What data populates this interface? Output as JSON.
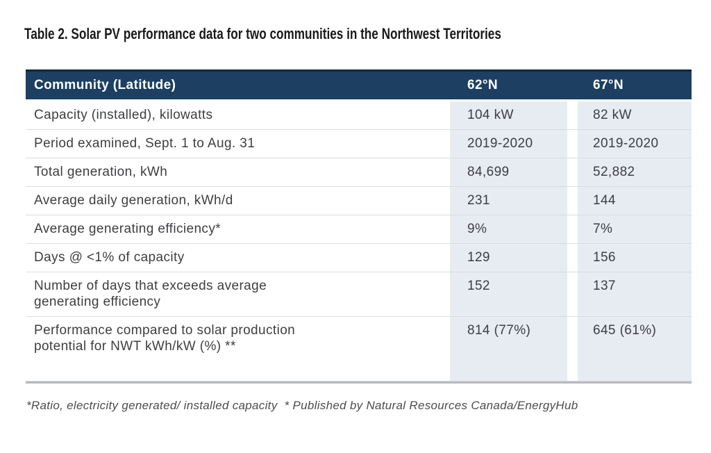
{
  "title": "Table 2. Solar PV performance data for two communities in the Northwest Territories",
  "table": {
    "header": {
      "community": "Community (Latitude)",
      "cols": [
        "62°N",
        "67°N"
      ]
    },
    "rows": [
      {
        "label": "Capacity (installed), kilowatts",
        "v62": "104 kW",
        "v67": "82 kW"
      },
      {
        "label": "Period examined, Sept. 1 to Aug. 31",
        "v62": "2019-2020",
        "v67": "2019-2020"
      },
      {
        "label": "Total generation, kWh",
        "v62": "84,699",
        "v67": "52,882"
      },
      {
        "label": "Average daily generation, kWh/d",
        "v62": "231",
        "v67": "144"
      },
      {
        "label": "Average generating efficiency*",
        "v62": "9%",
        "v67": "7%"
      },
      {
        "label": "Days @ <1% of capacity",
        "v62": "129",
        "v67": "156"
      },
      {
        "label": "Number of days that exceeds average\ngenerating efficiency",
        "v62": "152",
        "v67": "137"
      },
      {
        "label": "Performance compared to solar production\npotential for NWT kWh/kW (%) **",
        "v62": "814 (77%)",
        "v67": "645 (61%)"
      }
    ]
  },
  "footnote": "*Ratio, electricity generated/ installed capacity  * Published by Natural Resources Canada/EnergyHub",
  "colors": {
    "header_bg": "#1c3f62",
    "header_top": "#14283d",
    "cell_bg": "#e7ebf2",
    "row_border": "#d9dce1",
    "bottom_border": "#b6b9be",
    "text": "#3d3e40",
    "header_text": "#ffffff",
    "footnote_text": "#4b4c4e"
  }
}
